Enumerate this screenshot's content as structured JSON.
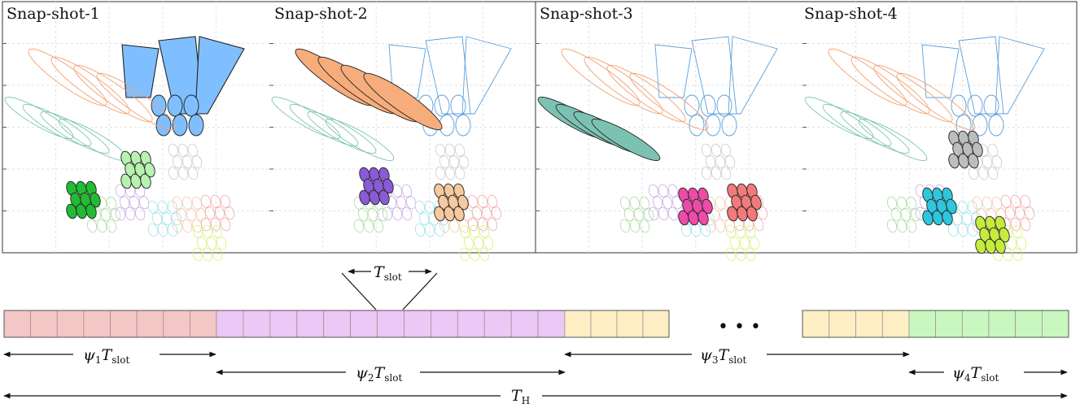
{
  "snapshots": [
    {
      "title": "Snap-shot-1",
      "highlight_colors": [
        "#7fbfff",
        "#b7f2b0",
        "#22bb33"
      ]
    },
    {
      "title": "Snap-shot-2",
      "highlight_colors": [
        "#f6ad7b",
        "#8a5bd6",
        "#f7c9a0"
      ]
    },
    {
      "title": "Snap-shot-3",
      "highlight_colors": [
        "#7cc2b2",
        "#ee4aa8",
        "#f27a7a"
      ]
    },
    {
      "title": "Snap-shot-4",
      "highlight_colors": [
        "#bdbdbd",
        "#2ec6dd",
        "#c5ec3c"
      ]
    }
  ],
  "timeline": {
    "slot_label": "T",
    "slot_label_sub": "slot",
    "ellipsis": "• • •",
    "segment_colors": [
      "#f4c6c6",
      "#ebc8f5",
      "#fdeec4",
      "#c8f7c0"
    ],
    "labels": {
      "psi1": {
        "sym": "ψ",
        "idx": "1",
        "t": "T",
        "sub": "slot"
      },
      "psi2": {
        "sym": "ψ",
        "idx": "2",
        "t": "T",
        "sub": "slot"
      },
      "psi3": {
        "sym": "ψ",
        "idx": "3",
        "t": "T",
        "sub": "slot"
      },
      "psi4": {
        "sym": "ψ",
        "idx": "4",
        "t": "T",
        "sub": "slot"
      },
      "th": {
        "t": "T",
        "sub": "H"
      }
    }
  }
}
